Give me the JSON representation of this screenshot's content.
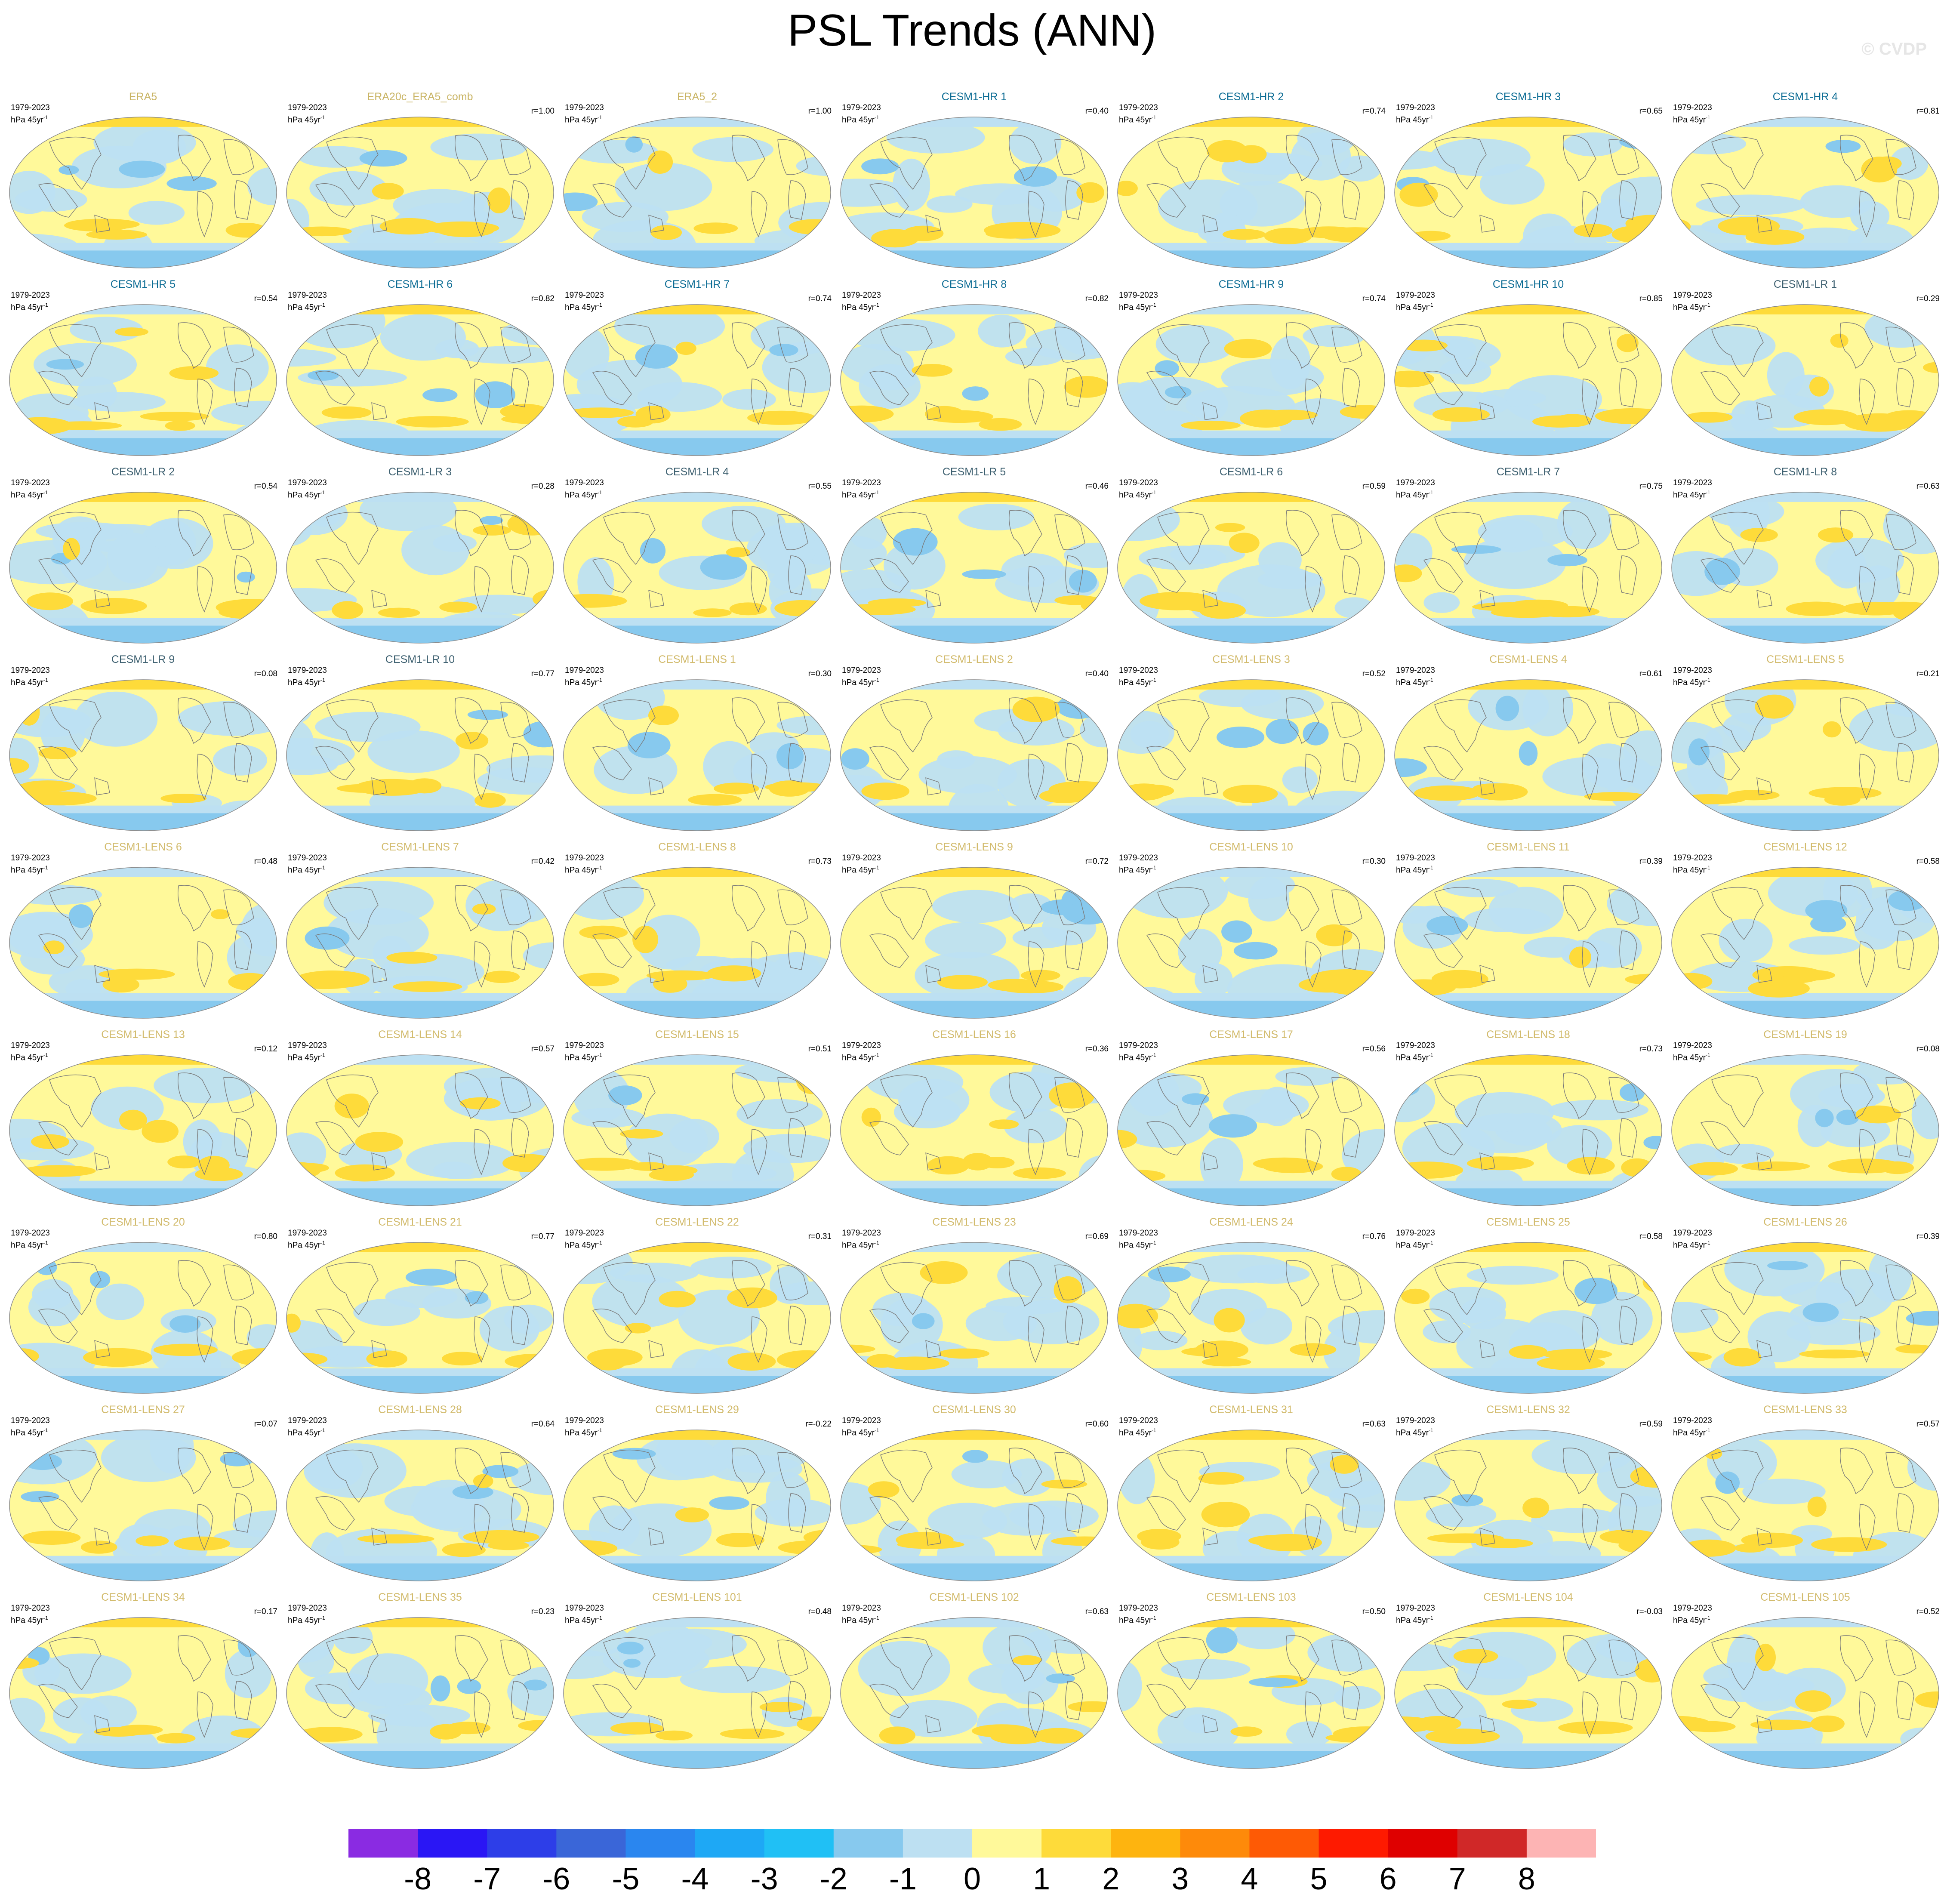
{
  "title": "PSL Trends (ANN)",
  "watermark": "© CVDP",
  "period_label": "1979-2023",
  "units_base": "hPa 45yr",
  "units_exp": "-1",
  "name_colors": {
    "observation": "#c9b464",
    "hr": "#0c6c94",
    "lr": "#3c5f6f",
    "lens": "#d2bb6d"
  },
  "chart_data": {
    "type": "map-panel-grid",
    "title": "PSL Trends (ANN)",
    "period": "1979-2023",
    "units": "hPa 45yr-1",
    "grid": {
      "rows": 9,
      "cols": 7
    },
    "panels": [
      {
        "name": "ERA5",
        "r": "",
        "group": "observation"
      },
      {
        "name": "ERA20c_ERA5_comb",
        "r": "r=1.00",
        "group": "observation"
      },
      {
        "name": "ERA5_2",
        "r": "r=1.00",
        "group": "observation"
      },
      {
        "name": "CESM1-HR 1",
        "r": "r=0.40",
        "group": "hr"
      },
      {
        "name": "CESM1-HR 2",
        "r": "r=0.74",
        "group": "hr"
      },
      {
        "name": "CESM1-HR 3",
        "r": "r=0.65",
        "group": "hr"
      },
      {
        "name": "CESM1-HR 4",
        "r": "r=0.81",
        "group": "hr"
      },
      {
        "name": "CESM1-HR 5",
        "r": "r=0.54",
        "group": "hr"
      },
      {
        "name": "CESM1-HR 6",
        "r": "r=0.82",
        "group": "hr"
      },
      {
        "name": "CESM1-HR 7",
        "r": "r=0.74",
        "group": "hr"
      },
      {
        "name": "CESM1-HR 8",
        "r": "r=0.82",
        "group": "hr"
      },
      {
        "name": "CESM1-HR 9",
        "r": "r=0.74",
        "group": "hr"
      },
      {
        "name": "CESM1-HR 10",
        "r": "r=0.85",
        "group": "hr"
      },
      {
        "name": "CESM1-LR 1",
        "r": "r=0.29",
        "group": "lr"
      },
      {
        "name": "CESM1-LR 2",
        "r": "r=0.54",
        "group": "lr"
      },
      {
        "name": "CESM1-LR 3",
        "r": "r=0.28",
        "group": "lr"
      },
      {
        "name": "CESM1-LR 4",
        "r": "r=0.55",
        "group": "lr"
      },
      {
        "name": "CESM1-LR 5",
        "r": "r=0.46",
        "group": "lr"
      },
      {
        "name": "CESM1-LR 6",
        "r": "r=0.59",
        "group": "lr"
      },
      {
        "name": "CESM1-LR 7",
        "r": "r=0.75",
        "group": "lr"
      },
      {
        "name": "CESM1-LR 8",
        "r": "r=0.63",
        "group": "lr"
      },
      {
        "name": "CESM1-LR 9",
        "r": "r=0.08",
        "group": "lr"
      },
      {
        "name": "CESM1-LR 10",
        "r": "r=0.77",
        "group": "lr"
      },
      {
        "name": "CESM1-LENS 1",
        "r": "r=0.30",
        "group": "lens"
      },
      {
        "name": "CESM1-LENS 2",
        "r": "r=0.40",
        "group": "lens"
      },
      {
        "name": "CESM1-LENS 3",
        "r": "r=0.52",
        "group": "lens"
      },
      {
        "name": "CESM1-LENS 4",
        "r": "r=0.61",
        "group": "lens"
      },
      {
        "name": "CESM1-LENS 5",
        "r": "r=0.21",
        "group": "lens"
      },
      {
        "name": "CESM1-LENS 6",
        "r": "r=0.48",
        "group": "lens"
      },
      {
        "name": "CESM1-LENS 7",
        "r": "r=0.42",
        "group": "lens"
      },
      {
        "name": "CESM1-LENS 8",
        "r": "r=0.73",
        "group": "lens"
      },
      {
        "name": "CESM1-LENS 9",
        "r": "r=0.72",
        "group": "lens"
      },
      {
        "name": "CESM1-LENS 10",
        "r": "r=0.30",
        "group": "lens"
      },
      {
        "name": "CESM1-LENS 11",
        "r": "r=0.39",
        "group": "lens"
      },
      {
        "name": "CESM1-LENS 12",
        "r": "r=0.58",
        "group": "lens"
      },
      {
        "name": "CESM1-LENS 13",
        "r": "r=0.12",
        "group": "lens"
      },
      {
        "name": "CESM1-LENS 14",
        "r": "r=0.57",
        "group": "lens"
      },
      {
        "name": "CESM1-LENS 15",
        "r": "r=0.51",
        "group": "lens"
      },
      {
        "name": "CESM1-LENS 16",
        "r": "r=0.36",
        "group": "lens"
      },
      {
        "name": "CESM1-LENS 17",
        "r": "r=0.56",
        "group": "lens"
      },
      {
        "name": "CESM1-LENS 18",
        "r": "r=0.73",
        "group": "lens"
      },
      {
        "name": "CESM1-LENS 19",
        "r": "r=0.08",
        "group": "lens"
      },
      {
        "name": "CESM1-LENS 20",
        "r": "r=0.80",
        "group": "lens"
      },
      {
        "name": "CESM1-LENS 21",
        "r": "r=0.77",
        "group": "lens"
      },
      {
        "name": "CESM1-LENS 22",
        "r": "r=0.31",
        "group": "lens"
      },
      {
        "name": "CESM1-LENS 23",
        "r": "r=0.69",
        "group": "lens"
      },
      {
        "name": "CESM1-LENS 24",
        "r": "r=0.76",
        "group": "lens"
      },
      {
        "name": "CESM1-LENS 25",
        "r": "r=0.58",
        "group": "lens"
      },
      {
        "name": "CESM1-LENS 26",
        "r": "r=0.39",
        "group": "lens"
      },
      {
        "name": "CESM1-LENS 27",
        "r": "r=0.07",
        "group": "lens"
      },
      {
        "name": "CESM1-LENS 28",
        "r": "r=0.64",
        "group": "lens"
      },
      {
        "name": "CESM1-LENS 29",
        "r": "r=-0.22",
        "group": "lens"
      },
      {
        "name": "CESM1-LENS 30",
        "r": "r=0.60",
        "group": "lens"
      },
      {
        "name": "CESM1-LENS 31",
        "r": "r=0.63",
        "group": "lens"
      },
      {
        "name": "CESM1-LENS 32",
        "r": "r=0.59",
        "group": "lens"
      },
      {
        "name": "CESM1-LENS 33",
        "r": "r=0.57",
        "group": "lens"
      },
      {
        "name": "CESM1-LENS 34",
        "r": "r=0.17",
        "group": "lens"
      },
      {
        "name": "CESM1-LENS 35",
        "r": "r=0.23",
        "group": "lens"
      },
      {
        "name": "CESM1-LENS 101",
        "r": "r=0.48",
        "group": "lens"
      },
      {
        "name": "CESM1-LENS 102",
        "r": "r=0.63",
        "group": "lens"
      },
      {
        "name": "CESM1-LENS 103",
        "r": "r=0.50",
        "group": "lens"
      },
      {
        "name": "CESM1-LENS 104",
        "r": "r=-0.03",
        "group": "lens"
      },
      {
        "name": "CESM1-LENS 105",
        "r": "r=0.52",
        "group": "lens"
      }
    ],
    "colorbar": {
      "ticks": [
        -8,
        -7,
        -6,
        -5,
        -4,
        -3,
        -2,
        -1,
        0,
        1,
        2,
        3,
        4,
        5,
        6,
        7,
        8
      ],
      "colors": [
        "#8a2be2",
        "#2a16f5",
        "#2d3ee8",
        "#3a66d8",
        "#2a86ef",
        "#1ea8f5",
        "#20c0f5",
        "#87c9ee",
        "#bde0f2",
        "#fff99a",
        "#fedb3a",
        "#feb40f",
        "#fe8a0a",
        "#fe5a05",
        "#fe1a00",
        "#df0000",
        "#d02828",
        "#fdb4b4"
      ]
    }
  }
}
